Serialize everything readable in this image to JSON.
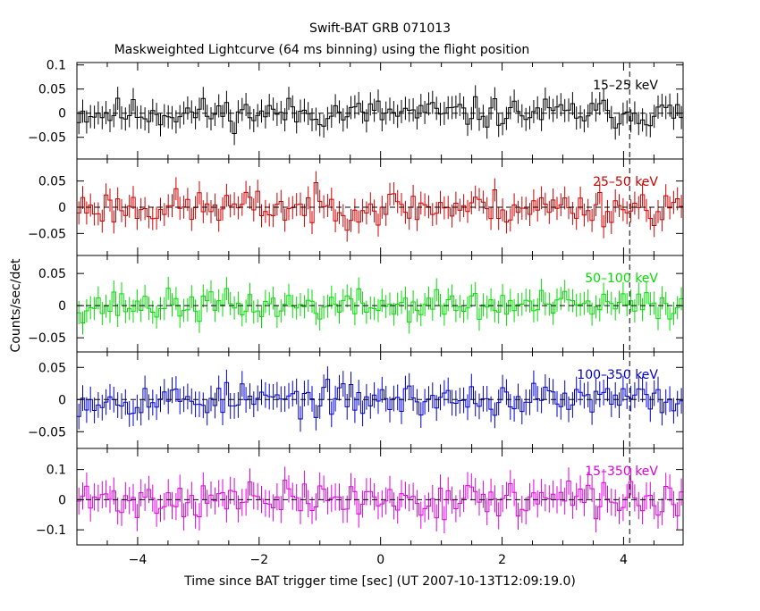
{
  "chart_data": {
    "type": "line",
    "title": "Swift-BAT GRB 071013",
    "subtitle": "Maskweighted Lightcurve (64 ms binning) using the flight position",
    "xlabel": "Time since BAT trigger time [sec] (UT 2007-10-13T12:09:19.0)",
    "ylabel": "Counts/sec/det",
    "xlim": [
      -5.0,
      4.98
    ],
    "x_ticks": [
      -4,
      -2,
      0,
      2,
      4
    ],
    "x_tick_labels": [
      "−4",
      "−2",
      "0",
      "2",
      "4"
    ],
    "bin_width_sec": 0.064,
    "marker_time_sec": 4.1,
    "grid": false,
    "panels": [
      {
        "band": "15–25 keV",
        "color": "#000000",
        "ylim": [
          -0.095,
          0.105
        ],
        "y_ticks": [
          0.1,
          0.05,
          0,
          -0.05
        ],
        "y_tick_labels": [
          "0.1",
          "0.05",
          "0",
          "−0.05"
        ],
        "noise_amplitude": 0.022,
        "error_bar": 0.024,
        "seed": 11
      },
      {
        "band": "25–50 keV",
        "color": "#cc0000",
        "ylim": [
          -0.092,
          0.092
        ],
        "y_ticks": [
          0.05,
          0,
          -0.05
        ],
        "y_tick_labels": [
          "0.05",
          "0",
          "−0.05"
        ],
        "noise_amplitude": 0.024,
        "error_bar": 0.022,
        "seed": 23
      },
      {
        "band": "50–100 keV",
        "color": "#00dd00",
        "ylim": [
          -0.072,
          0.078
        ],
        "y_ticks": [
          0.05,
          0,
          -0.05
        ],
        "y_tick_labels": [
          "0.05",
          "0",
          "−0.05"
        ],
        "noise_amplitude": 0.017,
        "error_bar": 0.018,
        "seed": 37
      },
      {
        "band": "100–350 keV",
        "color": "#0000cc",
        "ylim": [
          -0.076,
          0.074
        ],
        "y_ticks": [
          0.05,
          0,
          -0.05
        ],
        "y_tick_labels": [
          "0.05",
          "0",
          "−0.05"
        ],
        "noise_amplitude": 0.018,
        "error_bar": 0.02,
        "seed": 53
      },
      {
        "band": "15–350 keV",
        "color": "#dd00dd",
        "ylim": [
          -0.15,
          0.17
        ],
        "y_ticks": [
          0.1,
          0,
          -0.1
        ],
        "y_tick_labels": [
          "0.1",
          "0",
          "−0.1"
        ],
        "noise_amplitude": 0.042,
        "error_bar": 0.045,
        "seed": 71
      }
    ]
  }
}
